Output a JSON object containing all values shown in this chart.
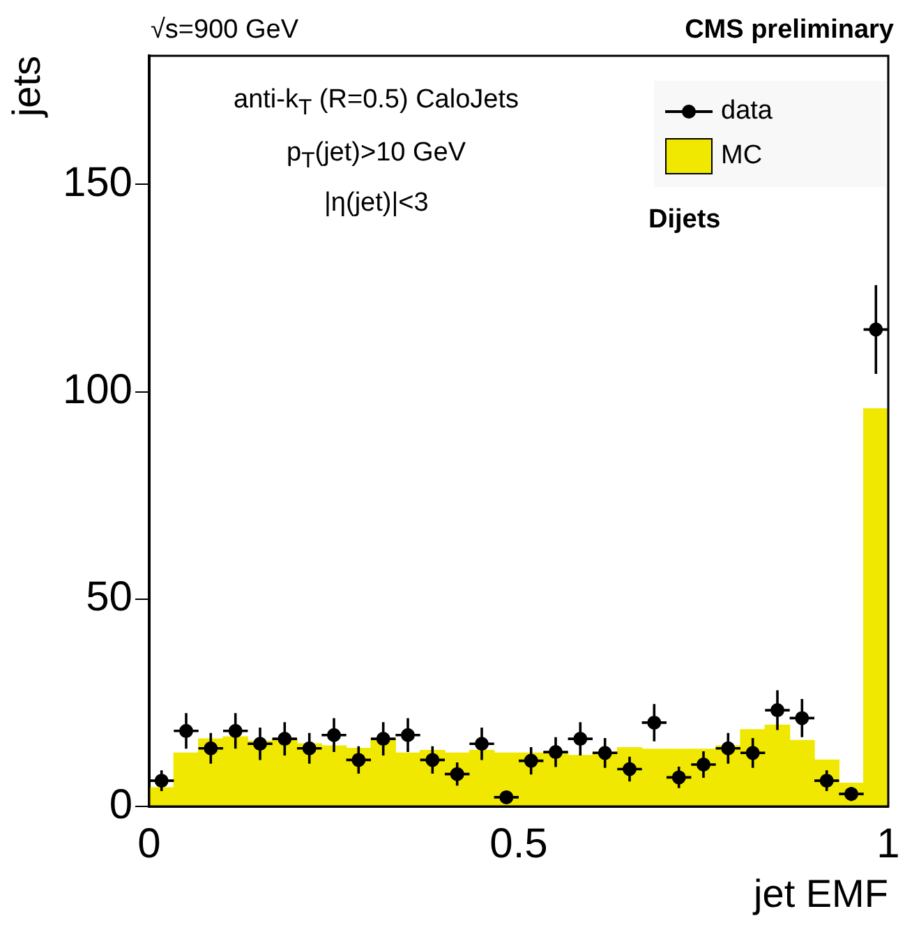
{
  "chart_data": {
    "type": "histogram",
    "xlabel": "jet EMF",
    "ylabel": "jets",
    "annotations": [
      "√s=900 GeV",
      "CMS preliminary",
      "anti-k$_{T}$ (R=0.5) CaloJets",
      "p$_{T}$(jet)>10 GeV",
      "|η(jet)|<3",
      "Dijets"
    ],
    "bins": [
      0,
      0.0333,
      0.0667,
      0.1,
      0.1333,
      0.1667,
      0.2,
      0.2333,
      0.2667,
      0.3,
      0.3333,
      0.3667,
      0.4,
      0.4333,
      0.4667,
      0.5,
      0.5333,
      0.5667,
      0.6,
      0.6333,
      0.6667,
      0.7,
      0.7333,
      0.7667,
      0.8,
      0.8333,
      0.8667,
      0.9,
      0.9333,
      0.9667,
      1
    ],
    "series": [
      {
        "name": "data",
        "type": "scatter",
        "color": "#000000",
        "x": [
          0.0167,
          0.05,
          0.0833,
          0.1167,
          0.15,
          0.1833,
          0.2167,
          0.25,
          0.2833,
          0.3167,
          0.35,
          0.3833,
          0.4167,
          0.45,
          0.4833,
          0.5167,
          0.55,
          0.5833,
          0.6167,
          0.65,
          0.6833,
          0.7167,
          0.75,
          0.7833,
          0.8167,
          0.85,
          0.8833,
          0.9167,
          0.95,
          0.9833
        ],
        "values": [
          6.2,
          18.2,
          14.0,
          18.2,
          15.1,
          16.3,
          14.0,
          17.2,
          11.2,
          16.3,
          17.2,
          11.2,
          7.8,
          15.1,
          2.2,
          11.0,
          13.1,
          16.3,
          12.9,
          9.0,
          20.2,
          7.0,
          10.1,
          14.0,
          12.9,
          23.2,
          21.3,
          6.2,
          3.0,
          115.0
        ],
        "errors": [
          2.5,
          4.3,
          3.7,
          4.3,
          3.9,
          4.0,
          3.7,
          4.1,
          3.3,
          4.0,
          4.1,
          3.3,
          2.8,
          3.9,
          1.5,
          3.3,
          3.6,
          4.0,
          3.6,
          3.0,
          4.5,
          2.6,
          3.2,
          3.7,
          3.6,
          4.8,
          4.6,
          2.5,
          1.7,
          10.7
        ],
        "xerrors": [
          0.0167,
          0.0167,
          0.0167,
          0.0167,
          0.0167,
          0.0167,
          0.0167,
          0.0167,
          0.0167,
          0.0167,
          0.0167,
          0.0167,
          0.0167,
          0.0167,
          0.0167,
          0.0167,
          0.0167,
          0.0167,
          0.0167,
          0.0167,
          0.0167,
          0.0167,
          0.0167,
          0.0167,
          0.0167,
          0.0167,
          0.0167,
          0.0167,
          0.0167,
          0.0167
        ]
      },
      {
        "name": "MC",
        "color": "#f0e800",
        "values": [
          4.5,
          12.9,
          16.3,
          16.8,
          15.7,
          16.3,
          15.1,
          14.6,
          14.0,
          16.3,
          12.9,
          13.5,
          12.9,
          13.5,
          12.9,
          12.9,
          12.9,
          12.3,
          13.1,
          14.2,
          13.8,
          13.8,
          13.8,
          14.6,
          18.5,
          19.6,
          15.9,
          11.2,
          5.6,
          95.9
        ]
      }
    ],
    "xlim": [
      0,
      1
    ],
    "xticks": [
      0,
      0.5,
      1
    ],
    "ylim": [
      0,
      181
    ],
    "yticks": [
      0,
      50,
      100,
      150
    ],
    "legend": "top right",
    "marker": "circle"
  }
}
